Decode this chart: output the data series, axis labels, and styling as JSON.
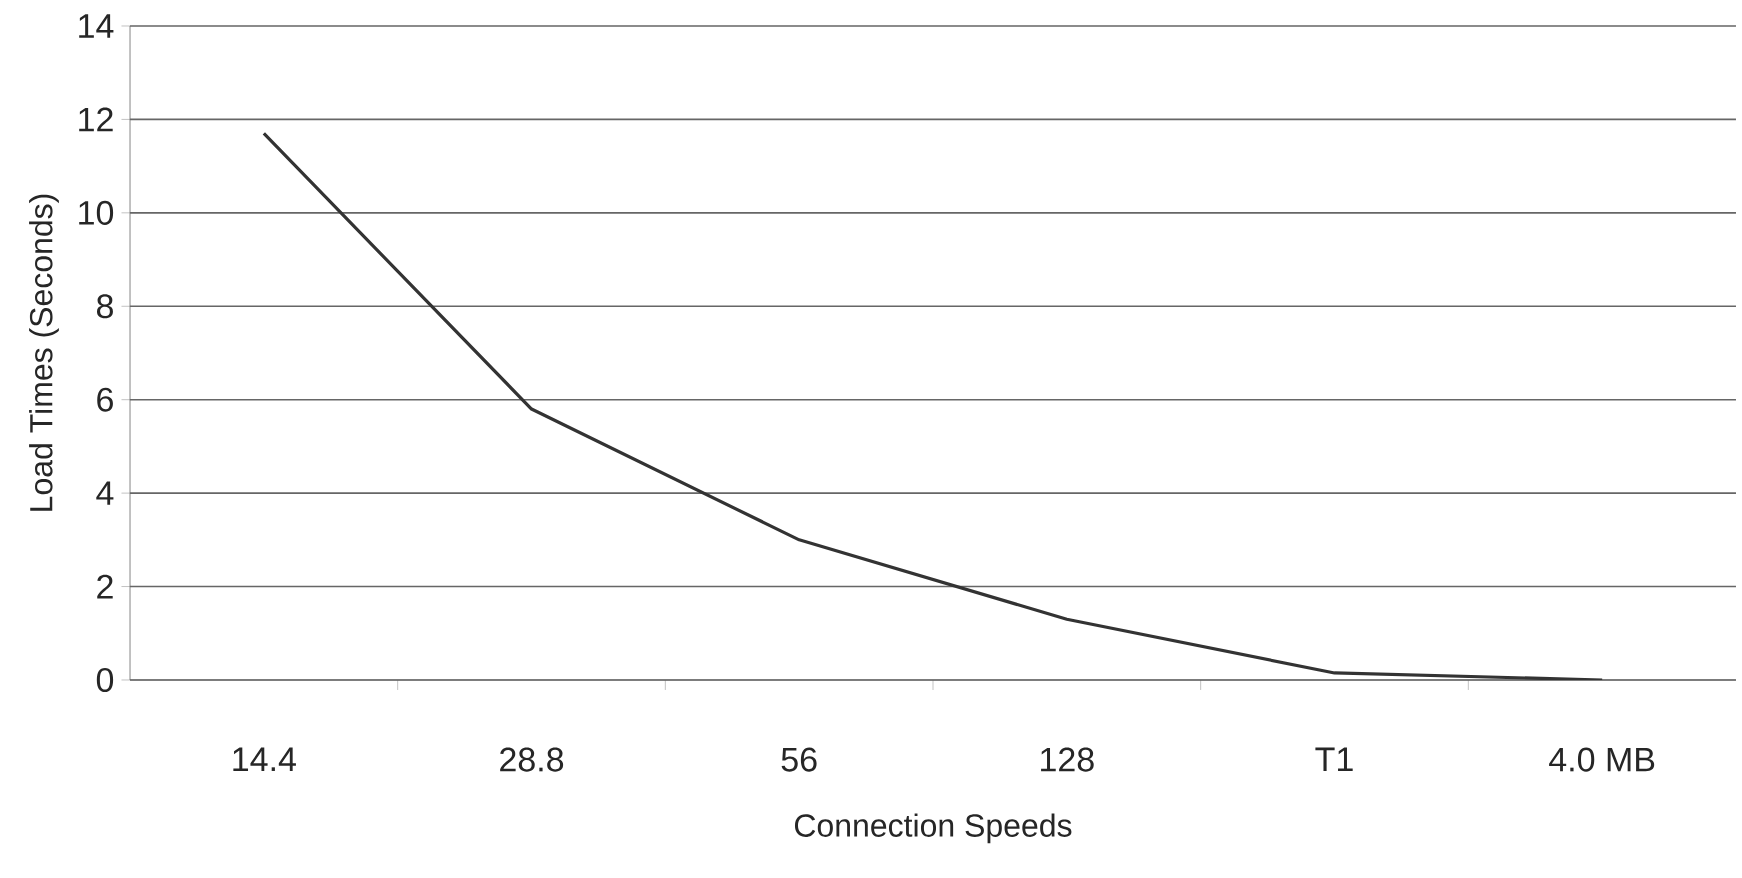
{
  "chart_data": {
    "type": "line",
    "xlabel": "Connection Speeds",
    "ylabel": "Load Times (Seconds)",
    "categories": [
      "14.4",
      "28.8",
      "56",
      "128",
      "T1",
      "4.0 MB"
    ],
    "values": [
      11.7,
      5.8,
      3.0,
      1.3,
      0.15,
      0.0
    ],
    "color": "#333333",
    "ylim": [
      0,
      14
    ],
    "yticks": [
      0,
      2,
      4,
      6,
      8,
      10,
      12,
      14
    ],
    "grid": "y"
  }
}
